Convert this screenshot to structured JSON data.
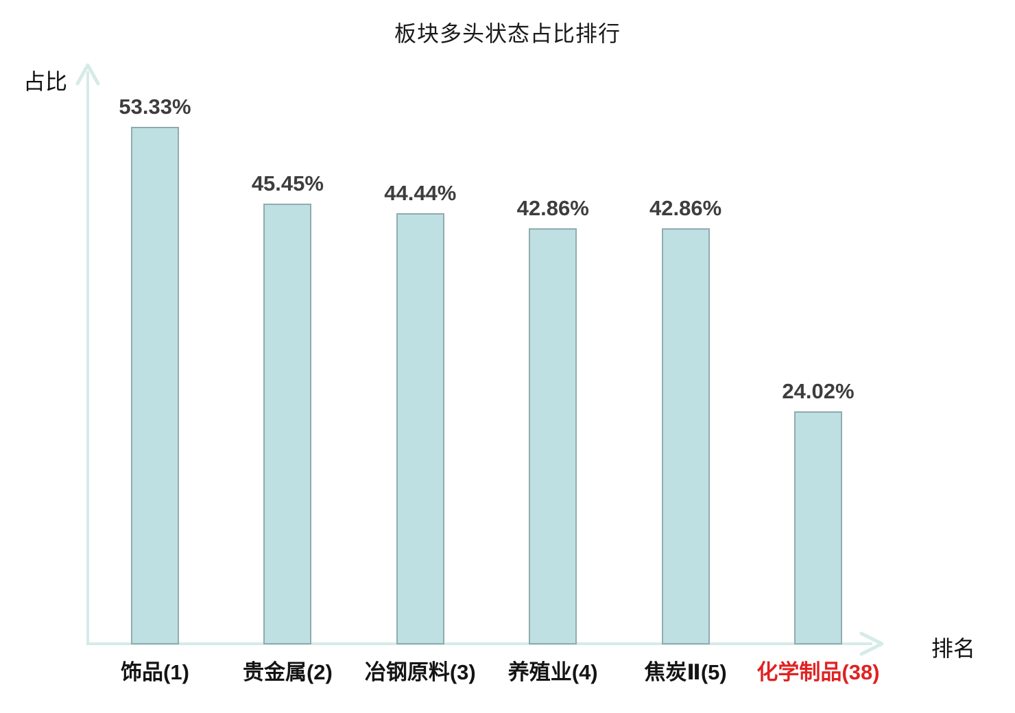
{
  "title": "板块多头状态占比排行",
  "chart_data": {
    "type": "bar",
    "title": "板块多头状态占比排行",
    "xlabel": "排名",
    "ylabel": "占比",
    "categories": [
      "饰品(1)",
      "贵金属(2)",
      "冶钢原料(3)",
      "养殖业(4)",
      "焦炭Ⅱ(5)",
      "化学制品(38)"
    ],
    "values": [
      53.33,
      45.45,
      44.44,
      42.86,
      42.86,
      24.02
    ],
    "value_labels": [
      "53.33%",
      "45.45%",
      "44.44%",
      "42.86%",
      "42.86%",
      "24.02%"
    ],
    "highlighted_category_index": 5,
    "ylim": [
      0,
      60
    ],
    "grid": false,
    "legend": null
  },
  "colors": {
    "bar_fill": "#bfe0e2",
    "bar_border": "#90abaf",
    "axis": "#d5ebe8",
    "title_text": "#1a1a1a",
    "axis_label_text": "#111111",
    "value_label_text": "#3d3d3d",
    "category_label_text": "#141414",
    "highlight": "#e02222"
  }
}
